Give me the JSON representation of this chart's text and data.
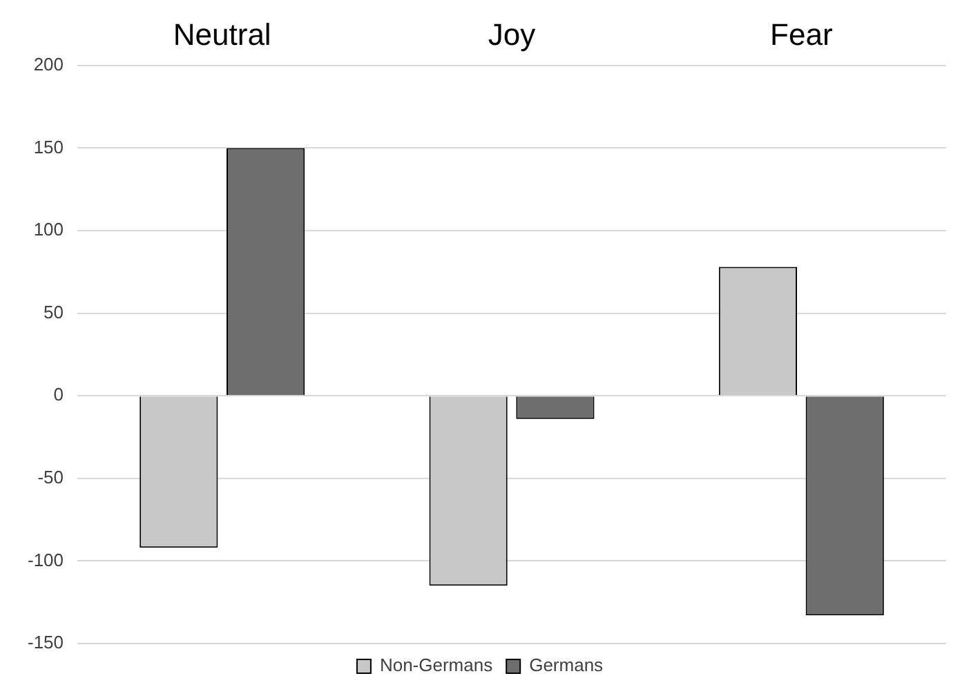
{
  "chart_data": {
    "type": "bar",
    "categories": [
      "Neutral",
      "Joy",
      "Fear"
    ],
    "series": [
      {
        "name": "Non-Germans",
        "color": "#c8c8c8",
        "values": [
          -92,
          -115,
          78
        ]
      },
      {
        "name": "Germans",
        "color": "#6e6e6e",
        "values": [
          150,
          -14,
          -133
        ]
      }
    ],
    "ylim": [
      -150,
      200
    ],
    "yticks": [
      -150,
      -100,
      -50,
      0,
      50,
      100,
      150,
      200
    ],
    "grid": "y",
    "legend": "bottom"
  }
}
